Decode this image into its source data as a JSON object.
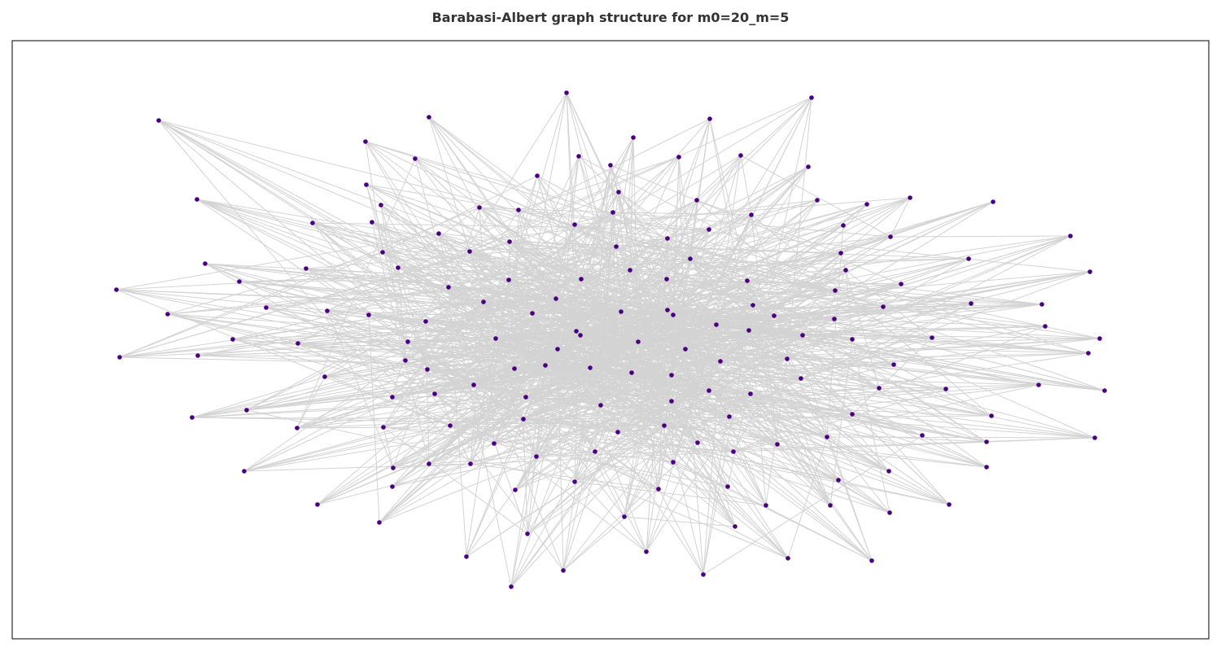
{
  "figure": {
    "title": "Barabasi-Albert graph structure for m0=20_m=5"
  },
  "style": {
    "node_color": "#4b0082",
    "edge_color": "#d3d3d3",
    "frame_color": "#000000",
    "background": "#ffffff"
  },
  "graph": {
    "model": "Barabasi-Albert",
    "m0": 20,
    "m": 5,
    "node_count": 174,
    "edges_drawn_as": "dense grey mesh with straight lines"
  }
}
